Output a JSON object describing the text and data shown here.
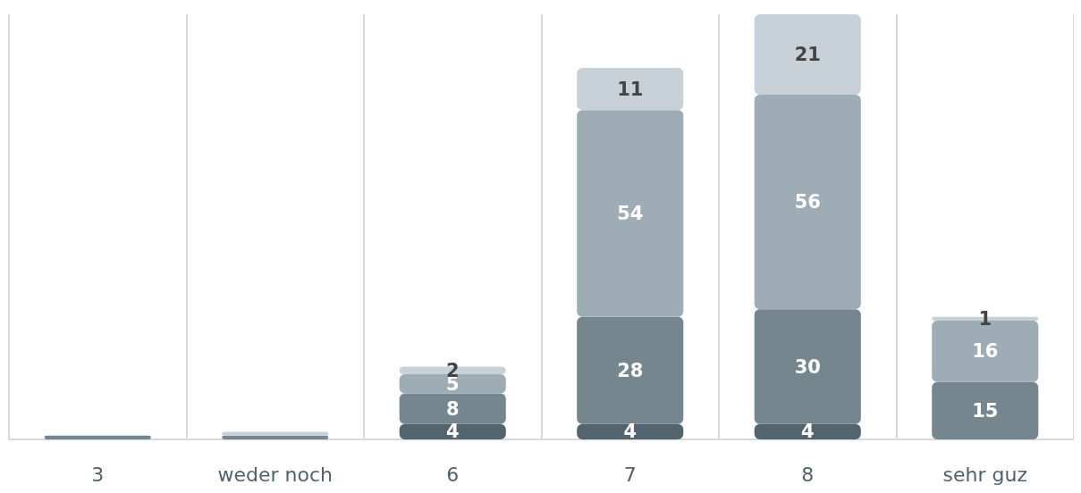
{
  "chart_data": {
    "type": "bar",
    "stacked": true,
    "grid": "x",
    "categories": [
      "3",
      "weder noch",
      "6",
      "7",
      "8",
      "sehr guz"
    ],
    "series": [
      {
        "color": "#53646e",
        "values": [
          null,
          null,
          4,
          4,
          4,
          null
        ],
        "value_labels": [
          null,
          null,
          "4",
          "4",
          "4",
          null
        ]
      },
      {
        "color": "#76868e",
        "values": [
          1,
          1,
          8,
          28,
          30,
          15
        ],
        "value_labels": [
          null,
          null,
          "8",
          "28",
          "30",
          "15"
        ]
      },
      {
        "color": "#9eacb5",
        "values": [
          null,
          null,
          5,
          54,
          56,
          16
        ],
        "value_labels": [
          null,
          null,
          "5",
          "54",
          "56",
          "16"
        ]
      },
      {
        "color": "#c9d1d8",
        "values": [
          null,
          1,
          2,
          11,
          21,
          1
        ],
        "value_labels": [
          null,
          null,
          "2",
          "11",
          "21",
          "1"
        ]
      }
    ]
  }
}
